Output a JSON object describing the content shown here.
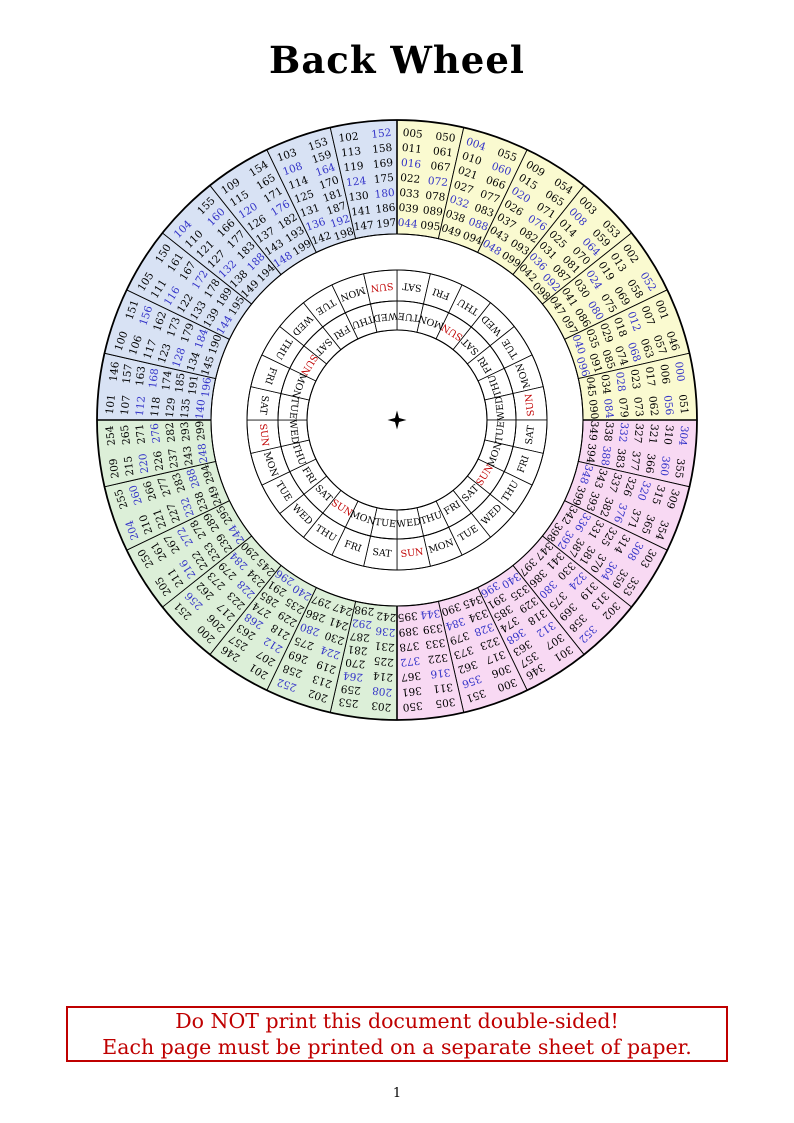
{
  "page": {
    "title": "Back Wheel",
    "page_number": "1",
    "warning": {
      "line1": "Do NOT print this document double-sided!",
      "line2": "Each page must be printed on a separate sheet of paper."
    }
  },
  "colors": {
    "quadrant_yellow": "#FAFAD0",
    "quadrant_blue": "#D8E2F4",
    "quadrant_green": "#DCEFD8",
    "quadrant_pink": "#F8D9F3",
    "leap_year_number": "#3232C8",
    "sunday_red": "#C00000",
    "warning_red": "#BF0000",
    "line_black": "#000000"
  },
  "wheel": {
    "center_marker": "four-pointed-star",
    "sectors": [
      {
        "quadrant": "yellow",
        "numbers": [
          "005",
          "011",
          "016",
          "022",
          "033",
          "039",
          "044",
          "050",
          "061",
          "067",
          "072",
          "078",
          "089",
          "095"
        ],
        "highlight": [
          "016",
          "044",
          "072"
        ]
      },
      {
        "quadrant": "yellow",
        "numbers": [
          "004",
          "010",
          "021",
          "027",
          "032",
          "038",
          "049",
          "055",
          "060",
          "066",
          "077",
          "083",
          "088",
          "094"
        ],
        "highlight": [
          "004",
          "032",
          "060",
          "088"
        ]
      },
      {
        "quadrant": "yellow",
        "numbers": [
          "009",
          "015",
          "020",
          "026",
          "037",
          "043",
          "048",
          "054",
          "065",
          "071",
          "076",
          "082",
          "093",
          "099"
        ],
        "highlight": [
          "020",
          "048",
          "076"
        ]
      },
      {
        "quadrant": "yellow",
        "numbers": [
          "003",
          "008",
          "014",
          "025",
          "031",
          "036",
          "042",
          "053",
          "059",
          "064",
          "070",
          "081",
          "087",
          "092",
          "098"
        ],
        "highlight": [
          "008",
          "036",
          "064",
          "092"
        ]
      },
      {
        "quadrant": "yellow",
        "numbers": [
          "002",
          "013",
          "019",
          "024",
          "030",
          "041",
          "047",
          "052",
          "058",
          "069",
          "075",
          "080",
          "086",
          "097"
        ],
        "highlight": [
          "024",
          "052",
          "080"
        ]
      },
      {
        "quadrant": "yellow",
        "numbers": [
          "001",
          "007",
          "012",
          "018",
          "029",
          "035",
          "040",
          "046",
          "057",
          "063",
          "068",
          "074",
          "085",
          "091",
          "096"
        ],
        "highlight": [
          "012",
          "040",
          "068",
          "096"
        ]
      },
      {
        "quadrant": "yellow",
        "numbers": [
          "000",
          "006",
          "017",
          "023",
          "028",
          "034",
          "045",
          "051",
          "056",
          "062",
          "073",
          "079",
          "084",
          "090"
        ],
        "highlight": [
          "000",
          "028",
          "056",
          "084"
        ]
      },
      {
        "quadrant": "pink",
        "numbers": [
          "304",
          "310",
          "321",
          "327",
          "332",
          "338",
          "349",
          "355",
          "360",
          "366",
          "377",
          "383",
          "388",
          "394"
        ],
        "highlight": [
          "304",
          "332",
          "360",
          "388"
        ]
      },
      {
        "quadrant": "pink",
        "numbers": [
          "309",
          "315",
          "320",
          "326",
          "337",
          "343",
          "348",
          "354",
          "365",
          "371",
          "376",
          "382",
          "393",
          "399"
        ],
        "highlight": [
          "320",
          "348",
          "376"
        ]
      },
      {
        "quadrant": "pink",
        "numbers": [
          "303",
          "308",
          "314",
          "325",
          "331",
          "336",
          "342",
          "353",
          "359",
          "364",
          "370",
          "381",
          "387",
          "392",
          "398"
        ],
        "highlight": [
          "308",
          "336",
          "364",
          "392"
        ]
      },
      {
        "quadrant": "pink",
        "numbers": [
          "302",
          "313",
          "319",
          "324",
          "330",
          "341",
          "347",
          "352",
          "358",
          "369",
          "375",
          "380",
          "386",
          "397"
        ],
        "highlight": [
          "324",
          "352",
          "380"
        ]
      },
      {
        "quadrant": "pink",
        "numbers": [
          "301",
          "307",
          "312",
          "318",
          "329",
          "335",
          "340",
          "346",
          "357",
          "363",
          "368",
          "374",
          "385",
          "391",
          "396"
        ],
        "highlight": [
          "312",
          "340",
          "368",
          "396"
        ]
      },
      {
        "quadrant": "pink",
        "numbers": [
          "300",
          "306",
          "317",
          "323",
          "328",
          "334",
          "345",
          "351",
          "356",
          "362",
          "373",
          "379",
          "384",
          "390"
        ],
        "highlight": [
          "328",
          "356",
          "384"
        ]
      },
      {
        "quadrant": "pink",
        "numbers": [
          "305",
          "311",
          "316",
          "322",
          "333",
          "339",
          "344",
          "350",
          "361",
          "367",
          "372",
          "378",
          "389",
          "395"
        ],
        "highlight": [
          "316",
          "344",
          "372"
        ]
      },
      {
        "quadrant": "green",
        "numbers": [
          "203",
          "208",
          "214",
          "225",
          "231",
          "236",
          "242",
          "253",
          "259",
          "264",
          "270",
          "281",
          "287",
          "292",
          "298"
        ],
        "highlight": [
          "208",
          "236",
          "264",
          "292"
        ]
      },
      {
        "quadrant": "green",
        "numbers": [
          "202",
          "213",
          "219",
          "224",
          "230",
          "241",
          "247",
          "252",
          "258",
          "269",
          "275",
          "280",
          "286",
          "297"
        ],
        "highlight": [
          "224",
          "252",
          "280"
        ]
      },
      {
        "quadrant": "green",
        "numbers": [
          "201",
          "207",
          "212",
          "218",
          "229",
          "235",
          "240",
          "246",
          "257",
          "263",
          "268",
          "274",
          "285",
          "291",
          "296"
        ],
        "highlight": [
          "212",
          "240",
          "268",
          "296"
        ]
      },
      {
        "quadrant": "green",
        "numbers": [
          "200",
          "206",
          "217",
          "223",
          "228",
          "234",
          "245",
          "251",
          "256",
          "262",
          "273",
          "279",
          "284",
          "290"
        ],
        "highlight": [
          "228",
          "256",
          "284"
        ]
      },
      {
        "quadrant": "green",
        "numbers": [
          "205",
          "211",
          "216",
          "222",
          "233",
          "239",
          "244",
          "250",
          "261",
          "267",
          "272",
          "278",
          "289",
          "295"
        ],
        "highlight": [
          "216",
          "244",
          "272"
        ]
      },
      {
        "quadrant": "green",
        "numbers": [
          "204",
          "210",
          "221",
          "227",
          "232",
          "238",
          "249",
          "255",
          "260",
          "266",
          "277",
          "283",
          "288",
          "294"
        ],
        "highlight": [
          "204",
          "232",
          "260",
          "288"
        ]
      },
      {
        "quadrant": "green",
        "numbers": [
          "209",
          "215",
          "220",
          "226",
          "237",
          "243",
          "248",
          "254",
          "265",
          "271",
          "276",
          "282",
          "293",
          "299"
        ],
        "highlight": [
          "220",
          "248",
          "276"
        ]
      },
      {
        "quadrant": "blue",
        "numbers": [
          "101",
          "107",
          "112",
          "118",
          "129",
          "135",
          "140",
          "146",
          "157",
          "163",
          "168",
          "174",
          "185",
          "191",
          "196"
        ],
        "highlight": [
          "112",
          "140",
          "168",
          "196"
        ]
      },
      {
        "quadrant": "blue",
        "numbers": [
          "100",
          "106",
          "117",
          "123",
          "128",
          "134",
          "145",
          "151",
          "156",
          "162",
          "173",
          "179",
          "184",
          "190"
        ],
        "highlight": [
          "128",
          "156",
          "184"
        ]
      },
      {
        "quadrant": "blue",
        "numbers": [
          "105",
          "111",
          "116",
          "122",
          "133",
          "139",
          "144",
          "150",
          "161",
          "167",
          "172",
          "178",
          "189",
          "195"
        ],
        "highlight": [
          "116",
          "144",
          "172"
        ]
      },
      {
        "quadrant": "blue",
        "numbers": [
          "104",
          "110",
          "121",
          "127",
          "132",
          "138",
          "149",
          "155",
          "160",
          "166",
          "177",
          "183",
          "188",
          "194"
        ],
        "highlight": [
          "104",
          "132",
          "160",
          "188"
        ]
      },
      {
        "quadrant": "blue",
        "numbers": [
          "109",
          "115",
          "120",
          "126",
          "137",
          "143",
          "148",
          "154",
          "165",
          "171",
          "176",
          "182",
          "193",
          "199"
        ],
        "highlight": [
          "120",
          "148",
          "176"
        ]
      },
      {
        "quadrant": "blue",
        "numbers": [
          "103",
          "108",
          "114",
          "125",
          "131",
          "136",
          "142",
          "153",
          "159",
          "164",
          "170",
          "181",
          "187",
          "192",
          "198"
        ],
        "highlight": [
          "108",
          "136",
          "164",
          "192"
        ]
      },
      {
        "quadrant": "blue",
        "numbers": [
          "102",
          "113",
          "119",
          "124",
          "130",
          "141",
          "147",
          "152",
          "158",
          "169",
          "175",
          "180",
          "186",
          "197"
        ],
        "highlight": [
          "124",
          "152",
          "180"
        ]
      }
    ],
    "day_rings": {
      "outer": [
        "SAT",
        "FRI",
        "THU",
        "WED",
        "TUE",
        "MON",
        "SUN",
        "SAT",
        "FRI",
        "THU",
        "WED",
        "TUE",
        "MON",
        "SUN",
        "SAT",
        "FRI",
        "THU",
        "WED",
        "TUE",
        "MON",
        "SUN",
        "SAT",
        "FRI",
        "THU",
        "WED",
        "TUE",
        "MON",
        "SUN"
      ],
      "inner": [
        "TUE",
        "MON",
        "SUN",
        "SAT",
        "FRI",
        "THU",
        "WED",
        "TUE",
        "MON",
        "SUN",
        "SAT",
        "FRI",
        "THU",
        "WED",
        "TUE",
        "MON",
        "SUN",
        "SAT",
        "FRI",
        "THU",
        "WED",
        "TUE",
        "MON",
        "SUN",
        "SAT",
        "FRI",
        "THU",
        "WED"
      ]
    }
  }
}
